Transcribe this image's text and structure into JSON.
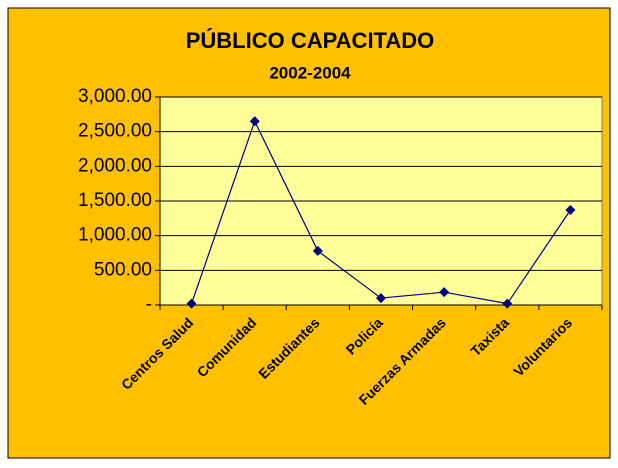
{
  "chart_data": {
    "type": "line",
    "title": "PÚBLICO CAPACITADO",
    "subtitle": "2002-2004",
    "categories": [
      "Centros Salud",
      "Comunidad",
      "Estudiantes",
      "Policía",
      "Fuerzas Armadas",
      "Taxista",
      "Voluntarios"
    ],
    "series": [
      {
        "color": "#000080",
        "values": [
          20,
          2650,
          780,
          100,
          185,
          20,
          1370
        ]
      }
    ],
    "ylim": [
      0,
      3000
    ],
    "yticks": [
      {
        "value": 0,
        "label": "-"
      },
      {
        "value": 500,
        "label": "500.00"
      },
      {
        "value": 1000,
        "label": "1,000.00"
      },
      {
        "value": 1500,
        "label": "1,500.00"
      },
      {
        "value": 2000,
        "label": "2,000.00"
      },
      {
        "value": 2500,
        "label": "2,500.00"
      },
      {
        "value": 3000,
        "label": "3,000.00"
      }
    ],
    "grid": true
  }
}
